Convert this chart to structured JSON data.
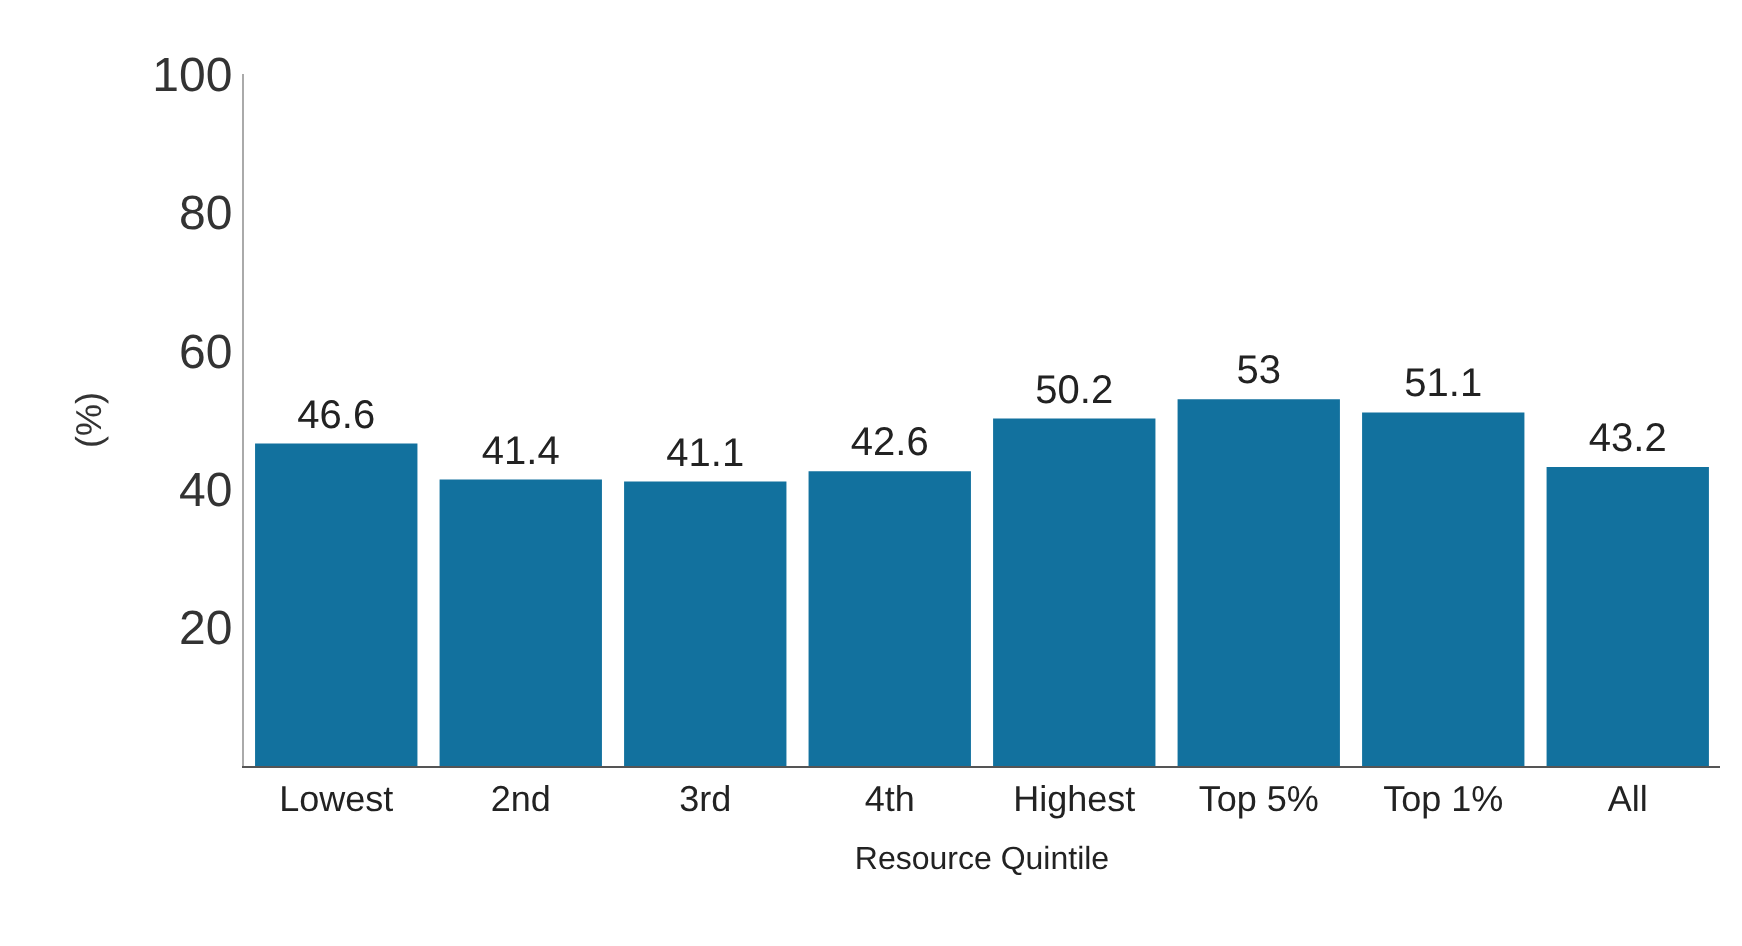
{
  "chart_data": {
    "type": "bar",
    "categories": [
      "Lowest",
      "2nd",
      "3rd",
      "4th",
      "Highest",
      "Top 5%",
      "Top 1%",
      "All"
    ],
    "values": [
      46.6,
      41.4,
      41.1,
      42.6,
      50.2,
      53,
      51.1,
      43.2
    ],
    "color": "#12719e",
    "ylim": [
      0,
      100
    ],
    "yticks": [
      20,
      40,
      60,
      80,
      100
    ],
    "ylabel": "(%)",
    "xlabel": "Resource Quintile",
    "data_labels": true,
    "grid": false
  }
}
